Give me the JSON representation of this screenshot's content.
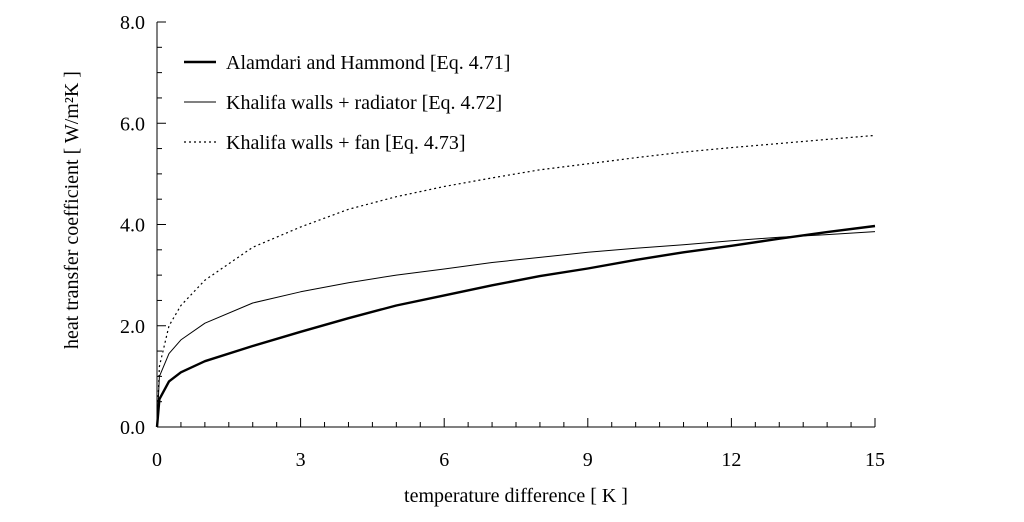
{
  "chart_data": {
    "type": "line",
    "title": "",
    "xlabel": "temperature difference [ K ]",
    "ylabel": "heat transfer coefficient  [ W/m²K ]",
    "xlim": [
      0,
      15
    ],
    "ylim": [
      0,
      8
    ],
    "xticks": [
      0,
      3,
      6,
      9,
      12,
      15
    ],
    "xtick_labels": [
      "0",
      "3",
      "6",
      "9",
      "12",
      "15"
    ],
    "yticks": [
      0,
      2,
      4,
      6,
      8
    ],
    "ytick_labels": [
      "0.0",
      "2.0",
      "4.0",
      "6.0",
      "8.0"
    ],
    "grid": false,
    "legend_position": "top-left",
    "x": [
      0,
      0.05,
      0.25,
      0.5,
      1,
      2,
      3,
      4,
      5,
      6,
      7,
      8,
      9,
      10,
      11,
      12,
      13,
      14,
      15
    ],
    "series": [
      {
        "name": "Alamdari and Hammond [Eq. 4.71]",
        "style": "solid-thick",
        "values": [
          0,
          0.55,
          0.9,
          1.08,
          1.3,
          1.6,
          1.88,
          2.15,
          2.4,
          2.6,
          2.8,
          2.98,
          3.13,
          3.3,
          3.45,
          3.58,
          3.72,
          3.85,
          3.97
        ]
      },
      {
        "name": "Khalifa walls + radiator  [Eq. 4.72]",
        "style": "solid-thin",
        "values": [
          0,
          1.0,
          1.45,
          1.72,
          2.05,
          2.45,
          2.67,
          2.85,
          3.0,
          3.12,
          3.25,
          3.35,
          3.45,
          3.53,
          3.6,
          3.68,
          3.75,
          3.8,
          3.86
        ]
      },
      {
        "name": "Khalifa walls + fan [Eq. 4.73]",
        "style": "dotted",
        "values": [
          0,
          1.2,
          2.0,
          2.4,
          2.9,
          3.55,
          3.95,
          4.3,
          4.55,
          4.75,
          4.92,
          5.08,
          5.2,
          5.32,
          5.43,
          5.52,
          5.6,
          5.68,
          5.76
        ]
      }
    ]
  }
}
